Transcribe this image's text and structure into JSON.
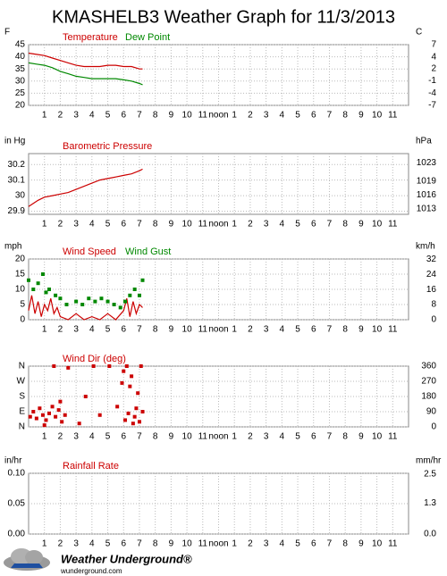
{
  "title": "KMASHELB3 Weather Graph for 11/3/2013",
  "x_axis": {
    "xlim": [
      0,
      24
    ],
    "xticks": [
      1,
      2,
      3,
      4,
      5,
      6,
      7,
      8,
      9,
      10,
      11,
      {
        "value": 12,
        "label": "noon"
      },
      {
        "value": 13,
        "label": "1"
      },
      {
        "value": 14,
        "label": "2"
      },
      {
        "value": 15,
        "label": "3"
      },
      {
        "value": 16,
        "label": "4"
      },
      {
        "value": 17,
        "label": "5"
      },
      {
        "value": 18,
        "label": "6"
      },
      {
        "value": 19,
        "label": "7"
      },
      {
        "value": 20,
        "label": "8"
      },
      {
        "value": 21,
        "label": "9"
      },
      {
        "value": 22,
        "label": "10"
      },
      {
        "value": 23,
        "label": "11"
      }
    ]
  },
  "chart_data": [
    {
      "type": "line",
      "ylabel": "F",
      "y2label": "C",
      "ylim": [
        20,
        45
      ],
      "yticks": [
        20,
        25,
        30,
        35,
        40,
        45
      ],
      "y2lim": [
        -6.7,
        7.2
      ],
      "y2ticks": [
        {
          "value": -6.7,
          "label": "-7"
        },
        {
          "value": -3.9,
          "label": "-4"
        },
        {
          "value": -1.1,
          "label": "-1"
        },
        {
          "value": 1.7,
          "label": "2"
        },
        {
          "value": 4.4,
          "label": "4"
        },
        {
          "value": 7.2,
          "label": "7"
        }
      ],
      "x": [
        0,
        0.5,
        1,
        1.5,
        2,
        2.5,
        3,
        3.5,
        4,
        4.5,
        5,
        5.5,
        6,
        6.5,
        7,
        7.2
      ],
      "series": [
        {
          "name": "Temperature",
          "color": "#cc0000",
          "values": [
            41.5,
            41,
            40.5,
            39.5,
            38.5,
            37.5,
            36.5,
            36,
            36,
            36,
            36.5,
            36.5,
            36,
            36,
            35,
            35
          ]
        },
        {
          "name": "Dew Point",
          "color": "#008800",
          "values": [
            37.5,
            37,
            36.5,
            35.5,
            34,
            33,
            32,
            31.5,
            31,
            31,
            31,
            31,
            30.5,
            30,
            29,
            28.5
          ]
        }
      ]
    },
    {
      "type": "line",
      "ylabel": "in Hg",
      "y2label": "hPa",
      "ylim": [
        29.88,
        30.27
      ],
      "yticks": [
        29.9,
        30,
        30.1,
        30.2
      ],
      "y2lim": [
        1011.8,
        1025
      ],
      "y2ticks": [
        1013,
        1016,
        1019,
        1023
      ],
      "x": [
        0,
        0.3,
        0.6,
        1,
        1.5,
        2,
        2.5,
        3,
        3.5,
        4,
        4.5,
        5,
        5.5,
        6,
        6.5,
        7,
        7.2
      ],
      "series": [
        {
          "name": "Barometric Pressure",
          "color": "#cc0000",
          "values": [
            29.93,
            29.95,
            29.97,
            29.99,
            30.0,
            30.01,
            30.02,
            30.04,
            30.06,
            30.08,
            30.1,
            30.11,
            30.12,
            30.13,
            30.14,
            30.16,
            30.17
          ]
        }
      ]
    },
    {
      "type": "line",
      "ylabel": "mph",
      "y2label": "km/h",
      "ylim": [
        0,
        20
      ],
      "yticks": [
        0,
        5,
        10,
        15,
        20
      ],
      "y2lim": [
        0,
        32.19
      ],
      "y2ticks": [
        0,
        8,
        16,
        24,
        32
      ],
      "series": [
        {
          "name": "Wind Speed",
          "color": "#cc0000",
          "x": [
            0,
            0.2,
            0.4,
            0.6,
            0.8,
            1,
            1.2,
            1.4,
            1.6,
            1.8,
            2,
            2.5,
            3,
            3.5,
            4,
            4.5,
            5,
            5.5,
            6,
            6.2,
            6.4,
            6.6,
            6.8,
            7,
            7.2
          ],
          "values": [
            3,
            8,
            2,
            6,
            1,
            5,
            3,
            7,
            2,
            4,
            1,
            0,
            2,
            0,
            1,
            0,
            2,
            0,
            3,
            7,
            1,
            6,
            2,
            5,
            4
          ]
        },
        {
          "name": "Wind Gust",
          "color": "#008800",
          "type": "scatter",
          "x": [
            0,
            0.3,
            0.6,
            0.9,
            1.1,
            1.3,
            1.7,
            2,
            2.4,
            3,
            3.4,
            3.8,
            4.2,
            4.6,
            5,
            5.4,
            5.8,
            6.1,
            6.4,
            6.7,
            7,
            7.2
          ],
          "values": [
            13,
            10,
            12,
            15,
            9,
            10,
            8,
            7,
            5,
            6,
            5,
            7,
            6,
            7,
            6,
            5,
            4,
            6,
            8,
            10,
            8,
            13
          ]
        }
      ]
    },
    {
      "type": "scatter",
      "ylabel": "",
      "y2label": "",
      "ylim": [
        0,
        360
      ],
      "yticks": [
        {
          "value": 0,
          "label": "N"
        },
        {
          "value": 90,
          "label": "E"
        },
        {
          "value": 180,
          "label": "S"
        },
        {
          "value": 270,
          "label": "W"
        },
        {
          "value": 360,
          "label": "N"
        }
      ],
      "y2lim": [
        0,
        360
      ],
      "y2ticks": [
        0,
        90,
        180,
        270,
        360
      ],
      "series": [
        {
          "name": "Wind Dir (deg)",
          "color": "#cc0000",
          "x": [
            0.1,
            0.3,
            0.5,
            0.7,
            0.9,
            1.1,
            1.3,
            1.5,
            1.7,
            1.9,
            2.1,
            2.3,
            1.0,
            1.6,
            2.0,
            2.5,
            3.2,
            3.6,
            4.1,
            4.5,
            5.1,
            5.6,
            5.9,
            6.0,
            6.1,
            6.2,
            6.3,
            6.4,
            6.5,
            6.6,
            6.7,
            6.8,
            6.9,
            7.0,
            7.1,
            7.2
          ],
          "values": [
            60,
            90,
            50,
            110,
            70,
            40,
            80,
            120,
            60,
            100,
            30,
            70,
            10,
            360,
            150,
            350,
            20,
            180,
            360,
            70,
            360,
            120,
            260,
            330,
            40,
            360,
            80,
            240,
            300,
            20,
            60,
            110,
            200,
            30,
            360,
            90
          ]
        }
      ]
    },
    {
      "type": "line",
      "ylabel": "in/hr",
      "y2label": "mm/hr",
      "ylim": [
        0,
        0.1
      ],
      "yticks": [
        {
          "value": 0,
          "label": "0.00"
        },
        0.05,
        {
          "value": 0.1,
          "label": "0.10"
        }
      ],
      "y2lim": [
        0,
        2.54
      ],
      "y2ticks": [
        {
          "value": 0,
          "label": "0.0"
        },
        1.3,
        2.5
      ],
      "series": [
        {
          "name": "Rainfall Rate",
          "color": "#cc0000",
          "x": [],
          "values": []
        }
      ]
    }
  ],
  "footer": {
    "brand": "Weather Underground®",
    "url": "wunderground.com"
  }
}
